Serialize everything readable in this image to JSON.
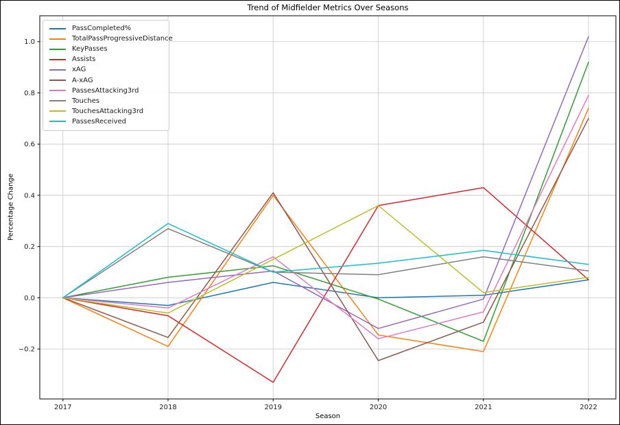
{
  "chart_data": {
    "type": "line",
    "title": "Trend of Midfielder Metrics Over Seasons",
    "xlabel": "Season",
    "ylabel": "Percentage Change",
    "x": [
      2017,
      2018,
      2019,
      2020,
      2021,
      2022
    ],
    "xtick_labels": [
      "2017",
      "2018",
      "2019",
      "2020",
      "2021",
      "2022"
    ],
    "yticks": [
      1.0,
      0.8,
      0.6,
      0.4,
      0.2,
      0.0,
      -0.2
    ],
    "ylim": [
      -0.395,
      1.101
    ],
    "xlim": [
      2016.78,
      2022.26
    ],
    "grid": true,
    "legend_position": "upper left",
    "series": [
      {
        "name": "PassCompleted%",
        "color": "#1f77b4",
        "values": [
          0.0,
          -0.03,
          0.06,
          0.0,
          0.01,
          0.07
        ]
      },
      {
        "name": "TotalPassProgressiveDistance",
        "color": "#ff7f0e",
        "values": [
          0.0,
          -0.19,
          0.4,
          -0.145,
          -0.21,
          0.74
        ]
      },
      {
        "name": "KeyPasses",
        "color": "#2ca02c",
        "values": [
          0.0,
          0.08,
          0.125,
          -0.005,
          -0.17,
          0.92
        ]
      },
      {
        "name": "Assists",
        "color": "#d62728",
        "values": [
          0.0,
          -0.07,
          -0.33,
          0.36,
          0.43,
          0.07
        ]
      },
      {
        "name": "xAG",
        "color": "#9467bd",
        "values": [
          0.0,
          0.06,
          0.105,
          -0.12,
          -0.005,
          1.02
        ]
      },
      {
        "name": "A-xAG",
        "color": "#8c564b",
        "values": [
          0.0,
          -0.155,
          0.41,
          -0.245,
          -0.095,
          0.7
        ]
      },
      {
        "name": "PassesAttacking3rd",
        "color": "#e377c2",
        "values": [
          0.0,
          -0.04,
          0.16,
          -0.16,
          -0.055,
          0.79
        ]
      },
      {
        "name": "Touches",
        "color": "#7f7f7f",
        "values": [
          0.0,
          0.27,
          0.1,
          0.09,
          0.16,
          0.105
        ]
      },
      {
        "name": "TouchesAttacking3rd",
        "color": "#bcbd22",
        "values": [
          0.0,
          -0.06,
          0.15,
          0.36,
          0.02,
          0.08
        ]
      },
      {
        "name": "PassesReceived",
        "color": "#17becf",
        "values": [
          0.0,
          0.29,
          0.1,
          0.135,
          0.185,
          0.13
        ]
      }
    ],
    "style": {
      "grid_color": "#c6c6c6",
      "spine_color": "#000000",
      "tick_label_color": "#1a1a1a",
      "line_width": 1.5
    }
  }
}
